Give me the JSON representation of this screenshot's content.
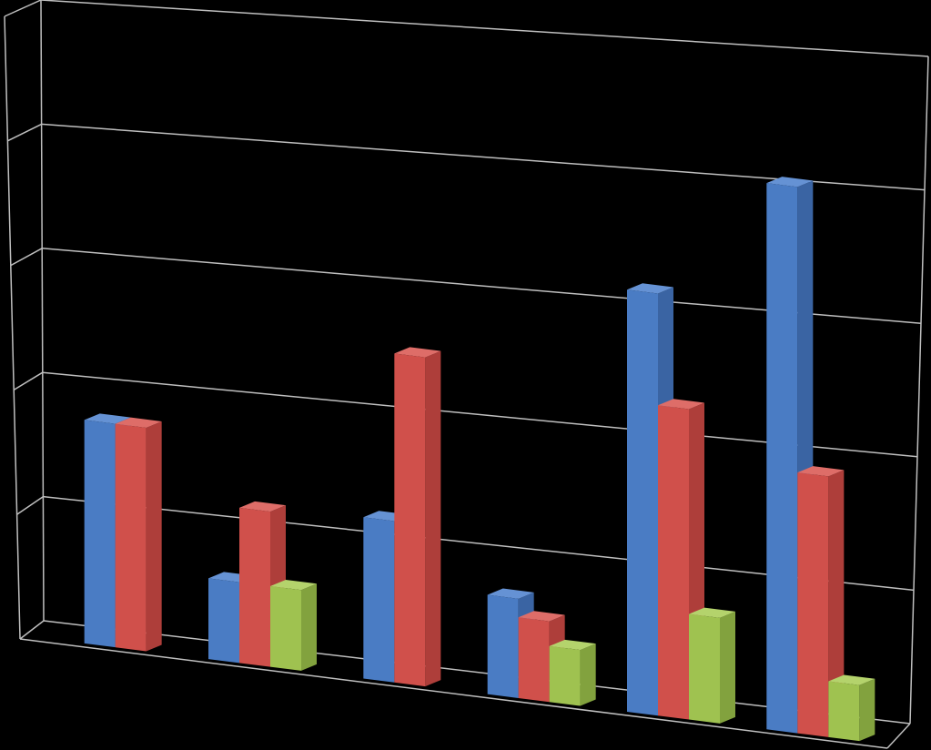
{
  "chart_data": {
    "type": "bar",
    "style": "3d-clustered-column",
    "categories": [
      "",
      "",
      "",
      "",
      "",
      ""
    ],
    "series": [
      {
        "values": [
          1.8,
          0.65,
          1.3,
          0.8,
          3.4,
          4.4
        ]
      },
      {
        "values": [
          1.8,
          1.25,
          2.65,
          0.65,
          2.5,
          2.1
        ]
      },
      {
        "values": [
          0,
          0.65,
          0,
          0.45,
          0.85,
          0.45
        ]
      }
    ],
    "ylim": [
      0,
      5
    ],
    "gridlines": true,
    "legend": "none",
    "title": "",
    "xlabel": "",
    "ylabel": ""
  },
  "colors": {
    "background": "#000000",
    "grid": "#bfbfbf",
    "series": [
      "#4a7cc4",
      "#d0504b",
      "#9fc250"
    ],
    "series_top": [
      "#6592d4",
      "#de6d68",
      "#b4d36c"
    ],
    "series_side": [
      "#3a64a3",
      "#ae3e3a",
      "#82a23e"
    ]
  }
}
